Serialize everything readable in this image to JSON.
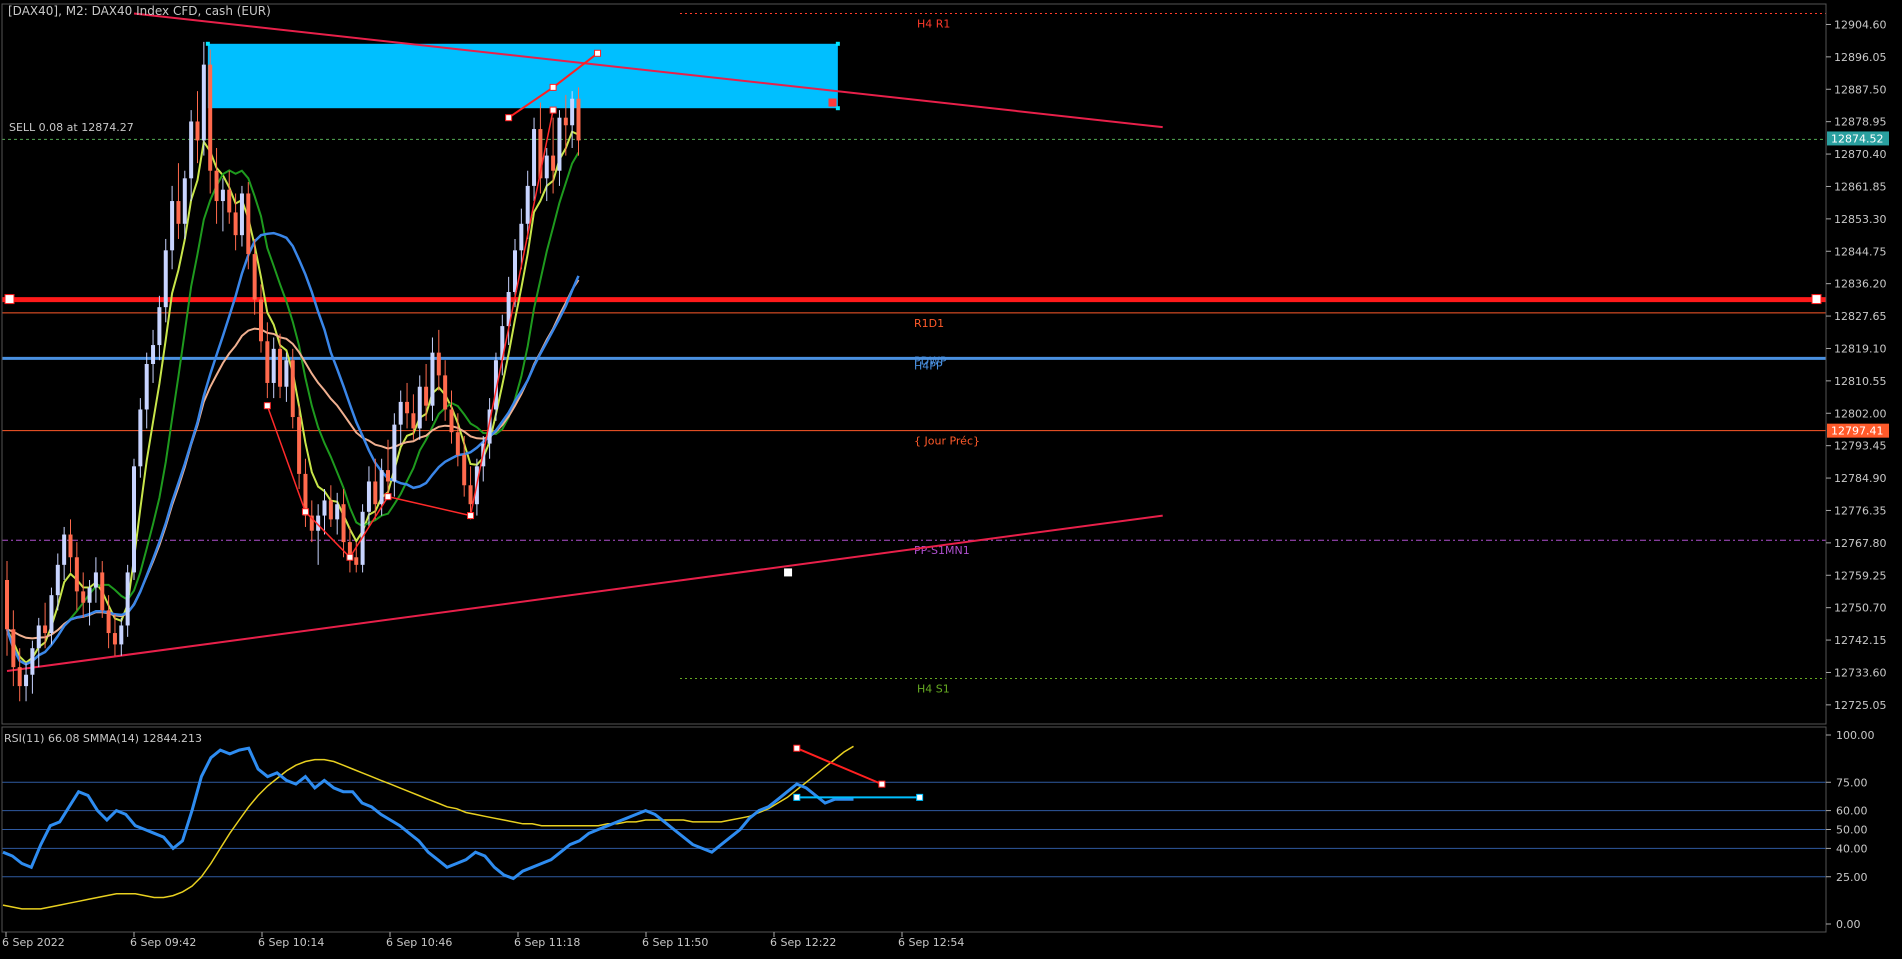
{
  "header": {
    "symbol_text": "[DAX40], M2:  DAX40 Index CFD, cash (EUR)",
    "trade_text": "SELL 0.08 at 12874.27"
  },
  "colors": {
    "background": "#000000",
    "grid_text": "#c8c8c8",
    "bull_candle": "#c8d4ff",
    "bear_candle": "#ff6a4d",
    "ma_fast": "#c8e64a",
    "ma_slow": "#1e9a1e",
    "ma_blue": "#3a86e8",
    "ma_peach": "#f0b090",
    "zone": "#00bfff",
    "pivot_red": "#ff2020",
    "trend_pink": "#e8204a",
    "rsi_line": "#2e8cf0",
    "rsi_signal": "#e8d020"
  },
  "chart_data": [
    {
      "type": "candlestick",
      "title": "[DAX40], M2:  DAX40 Index CFD, cash (EUR)",
      "ylim": [
        12720.0,
        12910.0
      ],
      "y_ticks": [
        "12904.60",
        "12896.05",
        "12887.50",
        "12878.95",
        "12870.40",
        "12861.85",
        "12853.30",
        "12844.75",
        "12836.20",
        "12827.65",
        "12819.10",
        "12810.55",
        "12802.00",
        "12793.45",
        "12784.90",
        "12776.35",
        "12767.80",
        "12759.25",
        "12750.70",
        "12742.15",
        "12733.60",
        "12725.05"
      ],
      "x_ticks": [
        "6 Sep 2022",
        "6 Sep 09:42",
        "6 Sep 10:14",
        "6 Sep 10:46",
        "6 Sep 11:18",
        "6 Sep 11:50",
        "6 Sep 12:22",
        "6 Sep 12:54"
      ],
      "price_badges": [
        {
          "value": "12874.52",
          "price": 12874.52,
          "color": "#2aa0a0"
        },
        {
          "value": "12797.41",
          "price": 12797.41,
          "color": "#ff5a2a"
        }
      ],
      "levels": [
        {
          "label": "H4 R1",
          "price": 12907.5,
          "color": "#ff3a2a",
          "style": "dotted"
        },
        {
          "label": "SELL 0.08 at 12874.27",
          "price": 12874.27,
          "color": "#55aa55",
          "style": "dashed"
        },
        {
          "label": "",
          "price": 12832.0,
          "color": "#ff1a1a",
          "style": "thick"
        },
        {
          "label": "R1D1",
          "price": 12828.5,
          "color": "#ff5a2a",
          "style": "solid"
        },
        {
          "label": "PDWP",
          "price": 12816.5,
          "color": "#4a90e0",
          "style": "solid"
        },
        {
          "label": "H4PP",
          "price": 12816.5,
          "color": "#4a90e0",
          "style": "hidden"
        },
        {
          "label": "{ Jour Préc}",
          "price": 12797.41,
          "color": "#ff5a2a",
          "style": "solid"
        },
        {
          "label": "PP-S1MN1",
          "price": 12768.5,
          "color": "#b050d0",
          "style": "dashdot"
        },
        {
          "label": "H4 S1",
          "price": 12732.0,
          "color": "#66aa22",
          "style": "dotted"
        }
      ],
      "candles": [
        {
          "o": 12758,
          "h": 12763,
          "l": 12738,
          "c": 12745
        },
        {
          "o": 12745,
          "h": 12750,
          "l": 12730,
          "c": 12735
        },
        {
          "o": 12735,
          "h": 12740,
          "l": 12726,
          "c": 12730
        },
        {
          "o": 12730,
          "h": 12736,
          "l": 12726,
          "c": 12733
        },
        {
          "o": 12733,
          "h": 12742,
          "l": 12728,
          "c": 12740
        },
        {
          "o": 12740,
          "h": 12748,
          "l": 12735,
          "c": 12746
        },
        {
          "o": 12746,
          "h": 12752,
          "l": 12740,
          "c": 12744
        },
        {
          "o": 12744,
          "h": 12756,
          "l": 12741,
          "c": 12754
        },
        {
          "o": 12754,
          "h": 12765,
          "l": 12750,
          "c": 12762
        },
        {
          "o": 12762,
          "h": 12772,
          "l": 12758,
          "c": 12770
        },
        {
          "o": 12770,
          "h": 12774,
          "l": 12760,
          "c": 12764
        },
        {
          "o": 12764,
          "h": 12768,
          "l": 12750,
          "c": 12755
        },
        {
          "o": 12755,
          "h": 12760,
          "l": 12748,
          "c": 12752
        },
        {
          "o": 12752,
          "h": 12758,
          "l": 12746,
          "c": 12756
        },
        {
          "o": 12756,
          "h": 12764,
          "l": 12752,
          "c": 12760
        },
        {
          "o": 12760,
          "h": 12763,
          "l": 12748,
          "c": 12750
        },
        {
          "o": 12750,
          "h": 12754,
          "l": 12740,
          "c": 12744
        },
        {
          "o": 12744,
          "h": 12749,
          "l": 12738,
          "c": 12741
        },
        {
          "o": 12741,
          "h": 12748,
          "l": 12738,
          "c": 12746
        },
        {
          "o": 12746,
          "h": 12762,
          "l": 12743,
          "c": 12760
        },
        {
          "o": 12760,
          "h": 12790,
          "l": 12758,
          "c": 12788
        },
        {
          "o": 12788,
          "h": 12806,
          "l": 12785,
          "c": 12803
        },
        {
          "o": 12803,
          "h": 12818,
          "l": 12798,
          "c": 12815
        },
        {
          "o": 12815,
          "h": 12824,
          "l": 12810,
          "c": 12820
        },
        {
          "o": 12820,
          "h": 12833,
          "l": 12816,
          "c": 12830
        },
        {
          "o": 12830,
          "h": 12848,
          "l": 12826,
          "c": 12845
        },
        {
          "o": 12845,
          "h": 12862,
          "l": 12840,
          "c": 12858
        },
        {
          "o": 12858,
          "h": 12868,
          "l": 12848,
          "c": 12852
        },
        {
          "o": 12852,
          "h": 12866,
          "l": 12848,
          "c": 12864
        },
        {
          "o": 12864,
          "h": 12882,
          "l": 12858,
          "c": 12879
        },
        {
          "o": 12879,
          "h": 12887,
          "l": 12868,
          "c": 12874
        },
        {
          "o": 12874,
          "h": 12900,
          "l": 12870,
          "c": 12894
        },
        {
          "o": 12894,
          "h": 12898,
          "l": 12860,
          "c": 12866
        },
        {
          "o": 12866,
          "h": 12872,
          "l": 12852,
          "c": 12858
        },
        {
          "o": 12858,
          "h": 12864,
          "l": 12850,
          "c": 12861
        },
        {
          "o": 12861,
          "h": 12866,
          "l": 12852,
          "c": 12855
        },
        {
          "o": 12855,
          "h": 12860,
          "l": 12845,
          "c": 12849
        },
        {
          "o": 12849,
          "h": 12862,
          "l": 12846,
          "c": 12860
        },
        {
          "o": 12860,
          "h": 12863,
          "l": 12840,
          "c": 12844
        },
        {
          "o": 12844,
          "h": 12848,
          "l": 12828,
          "c": 12832
        },
        {
          "o": 12832,
          "h": 12836,
          "l": 12818,
          "c": 12821
        },
        {
          "o": 12821,
          "h": 12826,
          "l": 12806,
          "c": 12810
        },
        {
          "o": 12810,
          "h": 12822,
          "l": 12806,
          "c": 12819
        },
        {
          "o": 12819,
          "h": 12823,
          "l": 12806,
          "c": 12809
        },
        {
          "o": 12809,
          "h": 12818,
          "l": 12805,
          "c": 12816
        },
        {
          "o": 12816,
          "h": 12819,
          "l": 12798,
          "c": 12801
        },
        {
          "o": 12801,
          "h": 12804,
          "l": 12782,
          "c": 12786
        },
        {
          "o": 12786,
          "h": 12790,
          "l": 12772,
          "c": 12775
        },
        {
          "o": 12775,
          "h": 12779,
          "l": 12768,
          "c": 12771
        },
        {
          "o": 12771,
          "h": 12778,
          "l": 12762,
          "c": 12775
        },
        {
          "o": 12775,
          "h": 12782,
          "l": 12770,
          "c": 12779
        },
        {
          "o": 12779,
          "h": 12783,
          "l": 12772,
          "c": 12774
        },
        {
          "o": 12774,
          "h": 12781,
          "l": 12770,
          "c": 12778
        },
        {
          "o": 12778,
          "h": 12782,
          "l": 12764,
          "c": 12768
        },
        {
          "o": 12768,
          "h": 12772,
          "l": 12760,
          "c": 12764
        },
        {
          "o": 12764,
          "h": 12768,
          "l": 12760,
          "c": 12762
        },
        {
          "o": 12762,
          "h": 12778,
          "l": 12760,
          "c": 12776
        },
        {
          "o": 12776,
          "h": 12788,
          "l": 12772,
          "c": 12784
        },
        {
          "o": 12784,
          "h": 12790,
          "l": 12774,
          "c": 12778
        },
        {
          "o": 12778,
          "h": 12790,
          "l": 12775,
          "c": 12787
        },
        {
          "o": 12787,
          "h": 12795,
          "l": 12780,
          "c": 12784
        },
        {
          "o": 12784,
          "h": 12802,
          "l": 12780,
          "c": 12799
        },
        {
          "o": 12799,
          "h": 12808,
          "l": 12794,
          "c": 12805
        },
        {
          "o": 12805,
          "h": 12810,
          "l": 12798,
          "c": 12802
        },
        {
          "o": 12802,
          "h": 12807,
          "l": 12795,
          "c": 12798
        },
        {
          "o": 12798,
          "h": 12812,
          "l": 12795,
          "c": 12809
        },
        {
          "o": 12809,
          "h": 12815,
          "l": 12800,
          "c": 12804
        },
        {
          "o": 12804,
          "h": 12822,
          "l": 12800,
          "c": 12818
        },
        {
          "o": 12818,
          "h": 12824,
          "l": 12808,
          "c": 12812
        },
        {
          "o": 12812,
          "h": 12816,
          "l": 12800,
          "c": 12803
        },
        {
          "o": 12803,
          "h": 12808,
          "l": 12794,
          "c": 12797
        },
        {
          "o": 12797,
          "h": 12802,
          "l": 12788,
          "c": 12791
        },
        {
          "o": 12791,
          "h": 12796,
          "l": 12780,
          "c": 12783
        },
        {
          "o": 12783,
          "h": 12788,
          "l": 12774,
          "c": 12778
        },
        {
          "o": 12778,
          "h": 12790,
          "l": 12775,
          "c": 12788
        },
        {
          "o": 12788,
          "h": 12796,
          "l": 12784,
          "c": 12794
        },
        {
          "o": 12794,
          "h": 12806,
          "l": 12790,
          "c": 12803
        },
        {
          "o": 12803,
          "h": 12818,
          "l": 12800,
          "c": 12816
        },
        {
          "o": 12816,
          "h": 12828,
          "l": 12812,
          "c": 12825
        },
        {
          "o": 12825,
          "h": 12838,
          "l": 12820,
          "c": 12834
        },
        {
          "o": 12834,
          "h": 12848,
          "l": 12830,
          "c": 12845
        },
        {
          "o": 12845,
          "h": 12856,
          "l": 12840,
          "c": 12852
        },
        {
          "o": 12852,
          "h": 12866,
          "l": 12848,
          "c": 12862
        },
        {
          "o": 12862,
          "h": 12880,
          "l": 12858,
          "c": 12877
        },
        {
          "o": 12877,
          "h": 12884,
          "l": 12860,
          "c": 12864
        },
        {
          "o": 12864,
          "h": 12872,
          "l": 12858,
          "c": 12870
        },
        {
          "o": 12870,
          "h": 12880,
          "l": 12860,
          "c": 12866
        },
        {
          "o": 12866,
          "h": 12882,
          "l": 12862,
          "c": 12880
        },
        {
          "o": 12880,
          "h": 12886,
          "l": 12870,
          "c": 12878
        },
        {
          "o": 12878,
          "h": 12887,
          "l": 12872,
          "c": 12885
        },
        {
          "o": 12885,
          "h": 12888,
          "l": 12870,
          "c": 12874
        }
      ],
      "zones": [
        {
          "label": "",
          "from_candle": 31,
          "to_candle": 131,
          "price_top": 12899.5,
          "price_bottom": 12882.5,
          "color": "#00bfff"
        }
      ],
      "trendlines": [
        {
          "label": "",
          "from": {
            "candle": 20,
            "price": 12907.5
          },
          "to": {
            "candle": 182,
            "price": 12877.5
          },
          "color": "#e8204a"
        },
        {
          "label": "",
          "from": {
            "candle": 0,
            "price": 12734.0
          },
          "to": {
            "candle": 182,
            "price": 12775.0
          },
          "color": "#e8204a"
        }
      ],
      "zigzag": [
        {
          "candle": 41,
          "price": 12804.0
        },
        {
          "candle": 47,
          "price": 12776.0
        },
        {
          "candle": 54,
          "price": 12764.0
        },
        {
          "candle": 60,
          "price": 12780.0
        },
        {
          "candle": 73,
          "price": 12775.0
        },
        {
          "candle": 86,
          "price": 12882.0
        }
      ],
      "projection_arrow": [
        {
          "candle": 79,
          "price": 12880.0
        },
        {
          "candle": 86,
          "price": 12888.0
        },
        {
          "candle": 93,
          "price": 12897.0
        }
      ]
    },
    {
      "type": "line",
      "title": "RSI(11) 66.08 SMMA(14) 12844.213",
      "ylim": [
        0,
        100
      ],
      "y_ticks": [
        "100.00",
        "75.00",
        "60.00",
        "50.00",
        "40.00",
        "25.00",
        "0.00"
      ],
      "levels": [
        75,
        60,
        50,
        40,
        25
      ],
      "series": [
        {
          "name": "RSI(11)",
          "values": [
            38,
            36,
            32,
            30,
            42,
            52,
            54,
            62,
            70,
            68,
            60,
            55,
            60,
            58,
            52,
            50,
            48,
            46,
            40,
            44,
            60,
            78,
            88,
            92,
            90,
            92,
            93,
            82,
            78,
            80,
            76,
            74,
            78,
            72,
            76,
            72,
            70,
            70,
            64,
            62,
            58,
            55,
            52,
            48,
            44,
            38,
            34,
            30,
            32,
            34,
            38,
            36,
            30,
            26,
            24,
            28,
            30,
            32,
            34,
            38,
            42,
            44,
            48,
            50,
            52,
            54,
            56,
            58,
            60,
            58,
            54,
            50,
            46,
            42,
            40,
            38,
            42,
            46,
            50,
            56,
            60,
            62,
            66,
            70,
            74,
            72,
            68,
            64,
            66,
            66,
            66
          ]
        },
        {
          "name": "SMMA(14)",
          "values": [
            10,
            9,
            8,
            8,
            8,
            9,
            10,
            11,
            12,
            13,
            14,
            15,
            16,
            16,
            16,
            15,
            14,
            14,
            15,
            17,
            20,
            25,
            32,
            40,
            48,
            55,
            62,
            68,
            73,
            77,
            81,
            84,
            86,
            87,
            87,
            86,
            84,
            82,
            80,
            78,
            76,
            74,
            72,
            70,
            68,
            66,
            64,
            62,
            61,
            59,
            58,
            57,
            56,
            55,
            54,
            53,
            53,
            52,
            52,
            52,
            52,
            52,
            52,
            52,
            53,
            53,
            54,
            54,
            55,
            55,
            55,
            55,
            55,
            54,
            54,
            54,
            54,
            55,
            56,
            57,
            59,
            61,
            64,
            67,
            71,
            75,
            79,
            83,
            87,
            91,
            94
          ]
        }
      ],
      "annotations": [
        {
          "label": "",
          "from": {
            "candle": 84,
            "value": 93
          },
          "to": {
            "candle": 93,
            "value": 74
          },
          "color": "#ff2020"
        },
        {
          "label": "",
          "from": {
            "candle": 84,
            "value": 67
          },
          "to": {
            "candle": 97,
            "value": 67
          },
          "color": "#00bfff"
        }
      ]
    }
  ]
}
